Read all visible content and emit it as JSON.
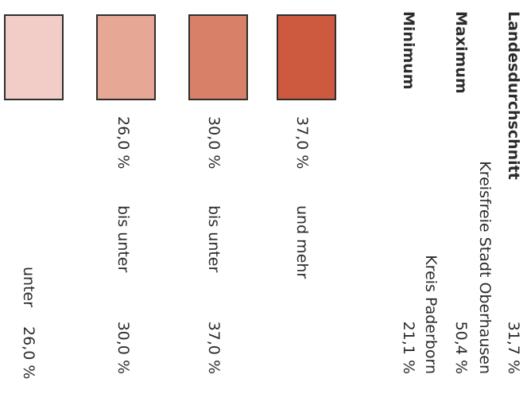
{
  "legend": {
    "classes": [
      {
        "color": "#f2cdc7",
        "from": "",
        "connector": "unter",
        "to": "26,0 %"
      },
      {
        "color": "#e6a795",
        "from": "26,0 %",
        "connector": "bis unter",
        "to": "30,0 %"
      },
      {
        "color": "#d98068",
        "from": "30,0 %",
        "connector": "bis unter",
        "to": "37,0 %"
      },
      {
        "color": "#cd5a3f",
        "from": "37,0 %",
        "connector": "und mehr",
        "to": ""
      }
    ]
  },
  "stats": {
    "minimum_label": "Minimum",
    "minimum_value": "21,1 %",
    "minimum_region": "Kreis Paderborn",
    "maximum_label": "Maximum",
    "maximum_value": "50,4 %",
    "maximum_region": "Kreisfreie Stadt Oberhausen",
    "average_label": "Landesdurchschnitt",
    "average_value": "31,7 %"
  }
}
